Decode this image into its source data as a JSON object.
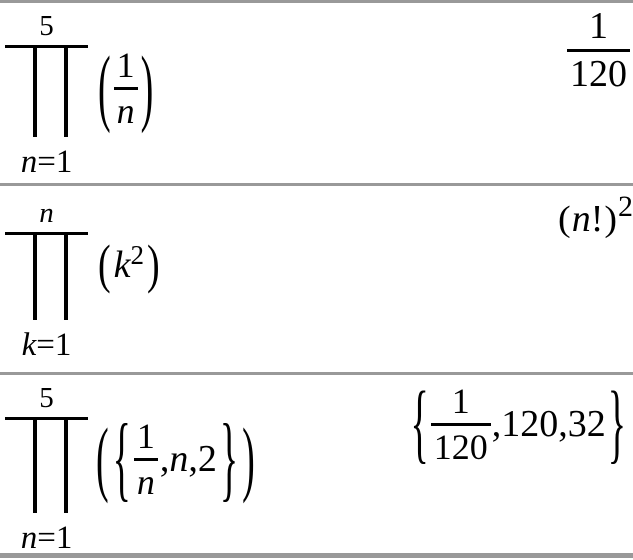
{
  "app": {
    "background": "#ffffff",
    "text_color": "#000000",
    "divider_color": "#999999"
  },
  "rows": [
    {
      "expression": {
        "kind": "product",
        "upper": "5",
        "lower": {
          "var": "n",
          "eq": "=",
          "value": "1"
        },
        "open_paren": "(",
        "fraction": {
          "num": "1",
          "den": "n"
        },
        "close_paren": ")"
      },
      "result": {
        "kind": "fraction",
        "num": "1",
        "den": "120"
      }
    },
    {
      "expression": {
        "kind": "product",
        "upper": "n",
        "lower": {
          "var": "k",
          "eq": "=",
          "value": "1"
        },
        "open_paren": "(",
        "base": "k",
        "exponent": "2",
        "close_paren": ")"
      },
      "result": {
        "kind": "power",
        "open_paren": "(",
        "base_var": "n",
        "factorial": "!",
        "close_paren": ")",
        "exponent": "2"
      }
    },
    {
      "expression": {
        "kind": "product",
        "upper": "5",
        "lower": {
          "var": "n",
          "eq": "=",
          "value": "1"
        },
        "open_paren": "(",
        "open_brace": "{",
        "fraction": {
          "num": "1",
          "den": "n"
        },
        "comma1": ",",
        "item2": "n",
        "comma2": ",",
        "item3": "2",
        "close_brace": "}",
        "close_paren": ")"
      },
      "result": {
        "kind": "list",
        "open_brace": "{",
        "fraction": {
          "num": "1",
          "den": "120"
        },
        "tail": ",120,32",
        "close_brace": "}"
      }
    }
  ]
}
